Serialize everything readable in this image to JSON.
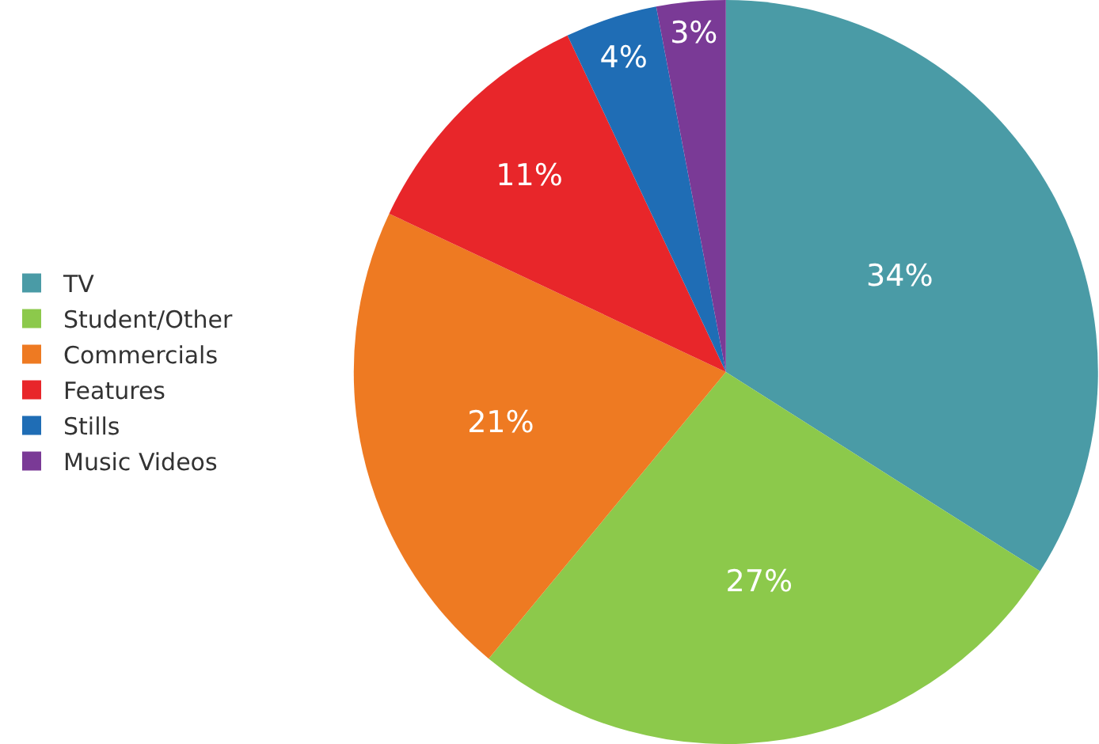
{
  "chart_data": {
    "type": "pie",
    "categories": [
      "TV",
      "Student/Other",
      "Commercials",
      "Features",
      "Stills",
      "Music Videos"
    ],
    "values": [
      34,
      27,
      21,
      11,
      4,
      3
    ],
    "value_labels": [
      "34%",
      "27%",
      "21%",
      "11%",
      "4%",
      "3%"
    ],
    "colors": [
      "#4a9ba6",
      "#8cc94b",
      "#ee7a22",
      "#e8262a",
      "#1f6db5",
      "#7a3a96"
    ],
    "legend": "left"
  }
}
